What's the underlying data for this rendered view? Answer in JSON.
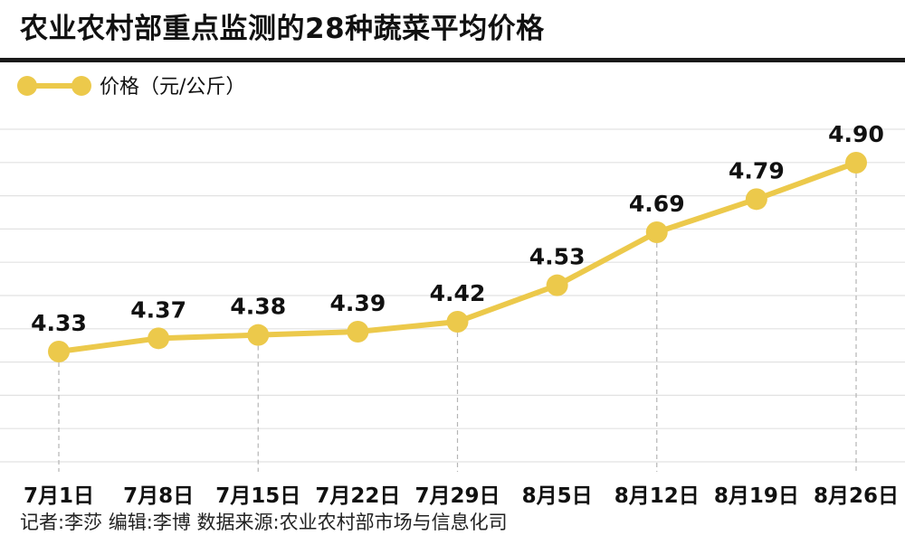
{
  "header": {
    "title": "农业农村部重点监测的28种蔬菜平均价格"
  },
  "footer": {
    "credit": "记者:李莎  编辑:李博  数据来源:农业农村部市场与信息化司"
  },
  "colors": {
    "series": "#ecc94b",
    "grid": "#e2e2e2",
    "guide": "#b5b5b5",
    "text": "#111111"
  },
  "chart_data": {
    "type": "line",
    "title": "",
    "xlabel": "",
    "ylabel": "",
    "legend_position": "top-left",
    "grid": true,
    "x": [
      "7月1日",
      "7月8日",
      "7月15日",
      "7月22日",
      "7月29日",
      "8月5日",
      "8月12日",
      "8月19日",
      "8月26日"
    ],
    "series": [
      {
        "name": "价格（元/公斤）",
        "values": [
          4.33,
          4.37,
          4.38,
          4.39,
          4.42,
          4.53,
          4.69,
          4.79,
          4.9
        ],
        "labels": [
          "4.33",
          "4.37",
          "4.38",
          "4.39",
          "4.42",
          "4.53",
          "4.69",
          "4.79",
          "4.90"
        ]
      }
    ]
  }
}
